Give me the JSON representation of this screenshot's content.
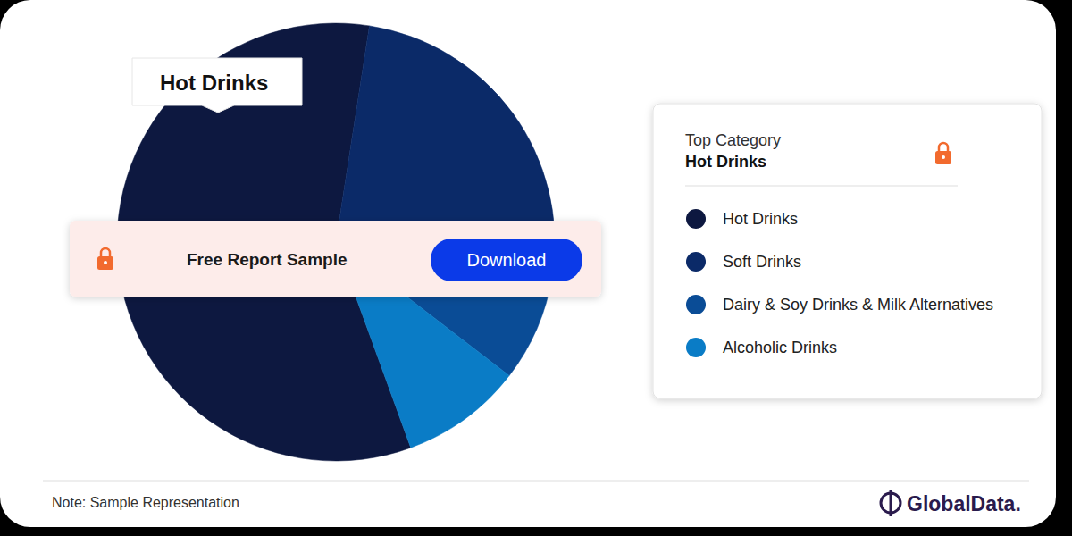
{
  "chart_data": {
    "type": "pie",
    "categories": [
      "Hot Drinks",
      "Soft Drinks",
      "Dairy & Soy Drinks & Milk Alternatives",
      "Alcoholic Drinks"
    ],
    "values": [
      58,
      25,
      8,
      9
    ],
    "colors": [
      "#0d1840",
      "#0b2a68",
      "#0a4c96",
      "#0a7cc6"
    ],
    "annotations": [
      "Hot Drinks"
    ],
    "legend": "right",
    "legend_header": {
      "label": "Top Category",
      "value": "Hot Drinks"
    }
  },
  "banner": {
    "text": "Free Report Sample",
    "button": "Download"
  },
  "note": "Note: Sample Representation",
  "brand": "GlobalData."
}
